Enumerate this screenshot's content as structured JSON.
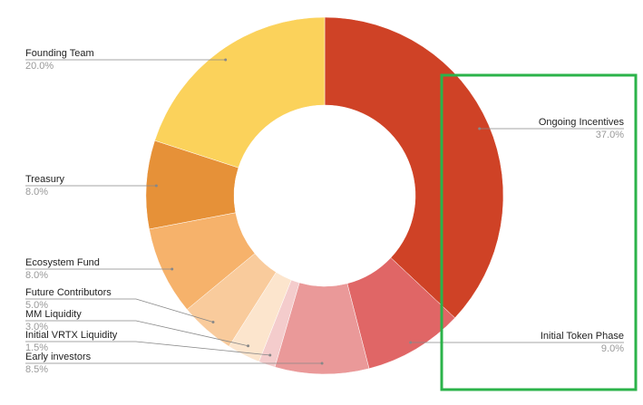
{
  "chart_data": {
    "type": "pie",
    "donut": true,
    "categories": [
      "Ongoing Incentives",
      "Initial Token Phase",
      "Early investors",
      "Initial VRTX Liquidity",
      "MM Liquidity",
      "Future Contributors",
      "Ecosystem Fund",
      "Treasury",
      "Founding Team"
    ],
    "values": [
      37,
      9,
      8.5,
      1.5,
      3,
      5,
      8,
      8,
      20
    ],
    "value_labels": [
      "37.0%",
      "9.0%",
      "8.5%",
      "1.5%",
      "3.0%",
      "5.0%",
      "8.0%",
      "8.0%",
      "20.0%"
    ],
    "colors": [
      "#cf4226",
      "#e06666",
      "#ea9999",
      "#f4cccc",
      "#fce5cd",
      "#f9cb9c",
      "#f6b26b",
      "#e69138",
      "#fbd25b"
    ]
  }
}
